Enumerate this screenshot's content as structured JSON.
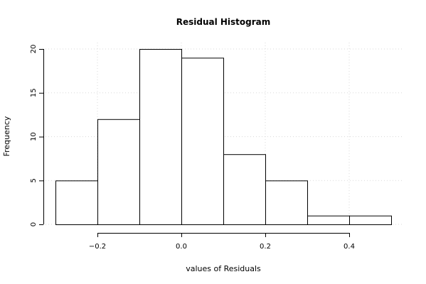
{
  "chart_data": {
    "type": "histogram",
    "title": "Residual Histogram",
    "xlabel": "values of Residuals",
    "ylabel": "Frequency",
    "bins": [
      {
        "from": -0.3,
        "to": -0.2,
        "count": 5
      },
      {
        "from": -0.2,
        "to": -0.1,
        "count": 12
      },
      {
        "from": -0.1,
        "to": 0.0,
        "count": 20
      },
      {
        "from": 0.0,
        "to": 0.1,
        "count": 19
      },
      {
        "from": 0.1,
        "to": 0.2,
        "count": 8
      },
      {
        "from": 0.2,
        "to": 0.3,
        "count": 5
      },
      {
        "from": 0.3,
        "to": 0.4,
        "count": 1
      },
      {
        "from": 0.4,
        "to": 0.5,
        "count": 1
      }
    ],
    "x_ticks": [
      -0.2,
      0.0,
      0.2,
      0.4
    ],
    "x_tick_labels": [
      "−0.2",
      "0.0",
      "0.2",
      "0.4"
    ],
    "y_ticks": [
      0,
      5,
      10,
      15,
      20
    ],
    "y_tick_labels": [
      "0",
      "5",
      "10",
      "15",
      "20"
    ],
    "xlim": [
      -0.3,
      0.5
    ],
    "ylim": [
      0,
      20
    ],
    "grid": true,
    "grid_style": "dotted",
    "bar_fill": "#ffffff",
    "bar_stroke": "#000000",
    "grid_color": "#d9d9d9"
  }
}
